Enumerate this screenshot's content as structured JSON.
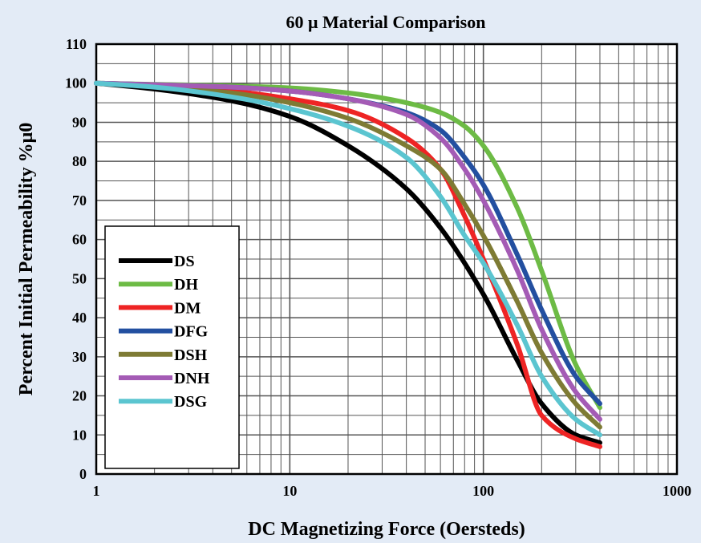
{
  "chart_data": {
    "type": "line",
    "title": "60 μ Material Comparison",
    "xlabel": "DC Magnetizing Force (Oersteds)",
    "ylabel": "Percent Initial Permeability %μ0",
    "xscale": "log",
    "xlim": [
      1,
      1000
    ],
    "ylim": [
      0,
      110
    ],
    "xticks": [
      "1",
      "10",
      "100",
      "1000"
    ],
    "yticks": [
      "0",
      "10",
      "20",
      "30",
      "40",
      "50",
      "60",
      "70",
      "80",
      "90",
      "100",
      "110"
    ],
    "grid": true,
    "legend_position": "bottom-left",
    "series": [
      {
        "name": "DS",
        "color": "#000000",
        "x": [
          1,
          2,
          5,
          10,
          20,
          40,
          60,
          100,
          150,
          200,
          300,
          400
        ],
        "y": [
          100,
          98.5,
          95.5,
          91.5,
          84,
          73,
          63,
          46,
          29,
          18,
          10,
          8
        ]
      },
      {
        "name": "DH",
        "color": "#6dbb45",
        "x": [
          1,
          2,
          5,
          10,
          20,
          40,
          60,
          80,
          100,
          150,
          200,
          300,
          400
        ],
        "y": [
          100,
          99.7,
          99.3,
          98.8,
          97.5,
          95,
          92.5,
          89,
          84,
          68,
          52,
          28,
          17
        ]
      },
      {
        "name": "DM",
        "color": "#ee2424",
        "x": [
          1,
          2,
          5,
          10,
          20,
          40,
          60,
          80,
          100,
          150,
          200,
          300,
          400
        ],
        "y": [
          100,
          99.3,
          98,
          96,
          93,
          86,
          78,
          66,
          55,
          33,
          15,
          9,
          7
        ]
      },
      {
        "name": "DFG",
        "color": "#234fa0",
        "x": [
          1,
          2,
          5,
          10,
          20,
          40,
          60,
          80,
          100,
          150,
          200,
          300,
          400
        ],
        "y": [
          100,
          99.6,
          99,
          98,
          96,
          92.5,
          88,
          81,
          74,
          56,
          42,
          25,
          18
        ]
      },
      {
        "name": "DSH",
        "color": "#7e7b34",
        "x": [
          1,
          2,
          5,
          10,
          20,
          40,
          60,
          80,
          100,
          150,
          200,
          300,
          400
        ],
        "y": [
          100,
          99.2,
          97.5,
          95,
          91,
          84,
          78,
          69,
          61,
          44,
          31,
          18,
          12
        ]
      },
      {
        "name": "DNH",
        "color": "#a45bb5",
        "x": [
          1,
          2,
          5,
          10,
          20,
          40,
          60,
          80,
          100,
          150,
          200,
          300,
          400
        ],
        "y": [
          100,
          99.6,
          99,
          98,
          96,
          92,
          86,
          78,
          70,
          52,
          37,
          21,
          14
        ]
      },
      {
        "name": "DSG",
        "color": "#5bc5d0",
        "x": [
          1,
          2,
          5,
          10,
          20,
          40,
          60,
          80,
          100,
          150,
          200,
          300,
          400
        ],
        "y": [
          100,
          99,
          96.5,
          93.5,
          89,
          81,
          71,
          61,
          54,
          38,
          25,
          14,
          10
        ]
      }
    ]
  }
}
